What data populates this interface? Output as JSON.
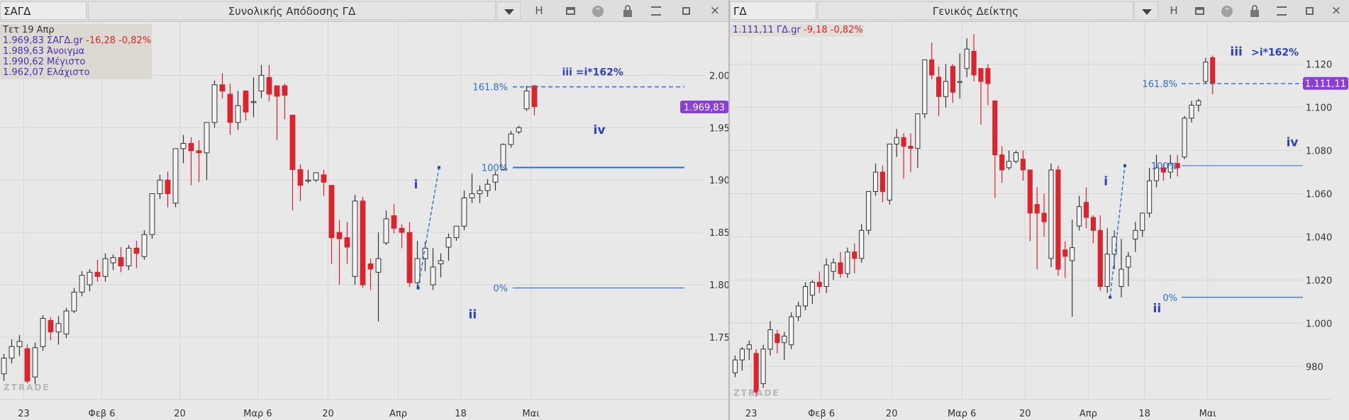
{
  "panels": [
    {
      "symbol": "ΣΑΓΔ",
      "name": "Συνολικής Απόδοσης ΓΔ",
      "date_line": "Τετ 19 Απρ",
      "info_close": "1.969,83 ΣΑΓΔ.gr",
      "info_change": "-16,28 -0,82%",
      "info_open": "1.989,63 Άνοιγμα",
      "info_high": "1.990,62 Μέγιστο",
      "info_low": "1.962,07 Ελάχιστο",
      "watermark": "ZTRADE",
      "last_price_tag": "1.969,83"
    },
    {
      "symbol": "ΓΔ",
      "name": "Γενικός Δείκτης",
      "info_close": "1.111,11 ΓΔ.gr",
      "info_change": "-9,18 -0,82%",
      "watermark": "ZTRADE",
      "last_price_tag": "1.111,11"
    }
  ],
  "toolbar": {
    "h_label": "H",
    "quote_glyph": "”",
    "close_glyph": "×"
  },
  "chart_data": [
    {
      "type": "candlestick",
      "title": "Συνολικής Απόδοσης ΓΔ",
      "y_ticks": [
        1750,
        1800,
        1850,
        1900,
        1950,
        2000
      ],
      "y_tick_labels": [
        "1.750",
        "1.800",
        "1.850",
        "1.900",
        "1.950",
        "2.000"
      ],
      "ylim": [
        1700,
        2030
      ],
      "x_tick_labels": [
        "23",
        "Φεβ 6",
        "20",
        "Μαρ 6",
        "20",
        "Απρ",
        "18",
        "Μαι"
      ],
      "x_tick_index": [
        3,
        13,
        23,
        33,
        42,
        51,
        59,
        68
      ],
      "last_price": 1969.83,
      "last_price_label": "1.969,83",
      "grid": true,
      "candles": [
        [
          1715,
          1734,
          1708,
          1730
        ],
        [
          1730,
          1748,
          1725,
          1741
        ],
        [
          1741,
          1752,
          1732,
          1746
        ],
        [
          1739,
          1743,
          1706,
          1708
        ],
        [
          1712,
          1745,
          1705,
          1740
        ],
        [
          1741,
          1771,
          1737,
          1768
        ],
        [
          1766,
          1769,
          1747,
          1755
        ],
        [
          1755,
          1770,
          1743,
          1763
        ],
        [
          1753,
          1778,
          1749,
          1775
        ],
        [
          1775,
          1797,
          1773,
          1793
        ],
        [
          1793,
          1813,
          1789,
          1809
        ],
        [
          1800,
          1815,
          1794,
          1812
        ],
        [
          1812,
          1824,
          1803,
          1808
        ],
        [
          1808,
          1830,
          1803,
          1825
        ],
        [
          1821,
          1829,
          1814,
          1826
        ],
        [
          1826,
          1836,
          1812,
          1818
        ],
        [
          1818,
          1838,
          1814,
          1835
        ],
        [
          1835,
          1842,
          1816,
          1830
        ],
        [
          1827,
          1852,
          1824,
          1848
        ],
        [
          1848,
          1885,
          1844,
          1887
        ],
        [
          1887,
          1905,
          1882,
          1900
        ],
        [
          1900,
          1908,
          1874,
          1887
        ],
        [
          1878,
          1930,
          1874,
          1930
        ],
        [
          1930,
          1943,
          1916,
          1935
        ],
        [
          1935,
          1941,
          1895,
          1928
        ],
        [
          1928,
          1938,
          1898,
          1926
        ],
        [
          1926,
          1955,
          1900,
          1955
        ],
        [
          1955,
          1995,
          1950,
          1991
        ],
        [
          1991,
          2002,
          1978,
          1985
        ],
        [
          1982,
          1992,
          1943,
          1955
        ],
        [
          1955,
          1985,
          1948,
          1971
        ],
        [
          1985,
          1986,
          1957,
          1965
        ],
        [
          1975,
          1998,
          1960,
          1975
        ],
        [
          1985,
          2010,
          1978,
          2000
        ],
        [
          1998,
          2010,
          1975,
          1982
        ],
        [
          1990,
          1990,
          1938,
          1980
        ],
        [
          1990,
          1992,
          1958,
          1981
        ],
        [
          1962,
          1962,
          1871,
          1910
        ],
        [
          1910,
          1915,
          1880,
          1895
        ],
        [
          1900,
          1910,
          1897,
          1900
        ],
        [
          1900,
          1907,
          1898,
          1907
        ],
        [
          1905,
          1910,
          1885,
          1898
        ],
        [
          1895,
          1895,
          1820,
          1845
        ],
        [
          1850,
          1862,
          1800,
          1844
        ],
        [
          1845,
          1860,
          1820,
          1836
        ],
        [
          1808,
          1886,
          1800,
          1880
        ],
        [
          1880,
          1884,
          1797,
          1800
        ],
        [
          1820,
          1825,
          1795,
          1815
        ],
        [
          1812,
          1850,
          1765,
          1825
        ],
        [
          1840,
          1871,
          1838,
          1863
        ],
        [
          1866,
          1877,
          1849,
          1854
        ],
        [
          1854,
          1858,
          1835,
          1850
        ],
        [
          1850,
          1860,
          1798,
          1802
        ],
        [
          1802,
          1842,
          1797,
          1825
        ],
        [
          1825,
          1841,
          1813,
          1835
        ],
        [
          1800,
          1835,
          1795,
          1817
        ],
        [
          1820,
          1830,
          1807,
          1823
        ],
        [
          1836,
          1849,
          1823,
          1845
        ],
        [
          1845,
          1856,
          1842,
          1856
        ],
        [
          1856,
          1890,
          1852,
          1883
        ],
        [
          1883,
          1906,
          1878,
          1887
        ],
        [
          1887,
          1895,
          1878,
          1890
        ],
        [
          1890,
          1901,
          1884,
          1896
        ],
        [
          1898,
          1908,
          1890,
          1905
        ],
        [
          1910,
          1935,
          1909,
          1934
        ],
        [
          1934,
          1947,
          1931,
          1944
        ],
        [
          1946,
          1952,
          1944,
          1950
        ],
        [
          1968,
          1990,
          1966,
          1985
        ],
        [
          1990,
          1991,
          1962,
          1970
        ]
      ],
      "fib_levels": [
        {
          "label": "161.8%",
          "value": 1989
        },
        {
          "label": "100%",
          "value": 1912
        },
        {
          "label": "0%",
          "value": 1797
        }
      ],
      "wave_labels": [
        {
          "text": "i",
          "value": 1892,
          "index": 53
        },
        {
          "text": "ii",
          "value": 1768,
          "index": 60
        },
        {
          "text": "iii =i*162%",
          "value": 2000,
          "index": 72
        },
        {
          "text": "iv",
          "value": 1944,
          "index": 76
        }
      ]
    },
    {
      "type": "candlestick",
      "title": "Γενικός Δείκτης",
      "y_ticks": [
        980,
        1000,
        1020,
        1040,
        1060,
        1080,
        1100,
        1120
      ],
      "y_tick_labels": [
        "980",
        "1.000",
        "1.020",
        "1.040",
        "1.060",
        "1.080",
        "1.100",
        "1.120"
      ],
      "ylim": [
        965,
        1133
      ],
      "x_tick_labels": [
        "23",
        "Φεβ 6",
        "20",
        "Μαρ 6",
        "20",
        "Απρ",
        "18",
        "Μαι"
      ],
      "x_tick_index": [
        3,
        13,
        23,
        33,
        42,
        51,
        59,
        68
      ],
      "last_price": 1111.11,
      "last_price_label": "1.111,11",
      "grid": true,
      "candles": [
        [
          977,
          985,
          975,
          983
        ],
        [
          983,
          989,
          978,
          988
        ],
        [
          988,
          992,
          983,
          990
        ],
        [
          986,
          988,
          966,
          968
        ],
        [
          972,
          990,
          970,
          988
        ],
        [
          988,
          1001,
          985,
          997
        ],
        [
          995,
          997,
          986,
          991
        ],
        [
          991,
          996,
          983,
          994
        ],
        [
          990,
          1005,
          988,
          1003
        ],
        [
          1003,
          1010,
          1001,
          1008
        ],
        [
          1008,
          1019,
          1006,
          1017
        ],
        [
          1013,
          1020,
          1009,
          1019
        ],
        [
          1019,
          1024,
          1014,
          1017
        ],
        [
          1017,
          1030,
          1014,
          1027
        ],
        [
          1024,
          1030,
          1020,
          1028
        ],
        [
          1028,
          1033,
          1021,
          1023
        ],
        [
          1023,
          1035,
          1021,
          1033
        ],
        [
          1033,
          1037,
          1023,
          1030
        ],
        [
          1030,
          1046,
          1028,
          1043
        ],
        [
          1043,
          1060,
          1041,
          1061
        ],
        [
          1061,
          1074,
          1059,
          1070
        ],
        [
          1070,
          1073,
          1056,
          1061
        ],
        [
          1057,
          1083,
          1055,
          1083
        ],
        [
          1083,
          1090,
          1077,
          1086
        ],
        [
          1086,
          1088,
          1067,
          1082
        ],
        [
          1082,
          1088,
          1070,
          1081
        ],
        [
          1081,
          1097,
          1072,
          1097
        ],
        [
          1097,
          1122,
          1095,
          1122
        ],
        [
          1122,
          1130,
          1113,
          1115
        ],
        [
          1114,
          1119,
          1096,
          1105
        ],
        [
          1105,
          1120,
          1100,
          1112
        ],
        [
          1119,
          1120,
          1102,
          1107
        ],
        [
          1112,
          1125,
          1104,
          1112
        ],
        [
          1118,
          1132,
          1114,
          1127
        ],
        [
          1126,
          1134,
          1112,
          1115
        ],
        [
          1118,
          1118,
          1092,
          1112
        ],
        [
          1118,
          1120,
          1101,
          1111
        ],
        [
          1103,
          1103,
          1058,
          1078
        ],
        [
          1078,
          1082,
          1065,
          1071
        ],
        [
          1072,
          1080,
          1071,
          1075
        ],
        [
          1075,
          1080,
          1074,
          1079
        ],
        [
          1076,
          1080,
          1066,
          1071
        ],
        [
          1071,
          1071,
          1038,
          1051
        ],
        [
          1055,
          1063,
          1025,
          1051
        ],
        [
          1051,
          1060,
          1040,
          1047
        ],
        [
          1030,
          1074,
          1026,
          1071
        ],
        [
          1071,
          1073,
          1022,
          1025
        ],
        [
          1034,
          1038,
          1021,
          1031
        ],
        [
          1029,
          1048,
          1003,
          1035
        ],
        [
          1045,
          1059,
          1043,
          1054
        ],
        [
          1056,
          1063,
          1044,
          1049
        ],
        [
          1049,
          1050,
          1037,
          1043
        ],
        [
          1043,
          1050,
          1015,
          1017
        ],
        [
          1017,
          1044,
          1014,
          1032
        ],
        [
          1032,
          1043,
          1025,
          1040
        ],
        [
          1017,
          1039,
          1012,
          1025
        ],
        [
          1026,
          1033,
          1017,
          1031
        ],
        [
          1039,
          1047,
          1033,
          1043
        ],
        [
          1043,
          1051,
          1040,
          1051
        ],
        [
          1051,
          1072,
          1049,
          1066
        ],
        [
          1066,
          1078,
          1063,
          1072
        ],
        [
          1072,
          1074,
          1066,
          1070
        ],
        [
          1070,
          1078,
          1067,
          1074
        ],
        [
          1074,
          1078,
          1068,
          1072
        ],
        [
          1077,
          1096,
          1076,
          1095
        ],
        [
          1095,
          1103,
          1093,
          1101
        ],
        [
          1101,
          1104,
          1098,
          1103
        ],
        [
          1112,
          1123,
          1111,
          1121
        ],
        [
          1123,
          1124,
          1106,
          1111
        ]
      ],
      "fib_levels": [
        {
          "label": "161.8%",
          "value": 1111
        },
        {
          "label": "100%",
          "value": 1073
        },
        {
          "label": "0%",
          "value": 1012
        }
      ],
      "wave_labels": [
        {
          "text": "i",
          "value": 1064,
          "index": 53
        },
        {
          "text": "ii",
          "value": 1005,
          "index": 60
        },
        {
          "text": "iii",
          "value": 1124,
          "index": 71
        },
        {
          "text": ">i*162%",
          "value": 1124,
          "index": 74
        },
        {
          "text": "iv",
          "value": 1082,
          "index": 79
        }
      ]
    }
  ]
}
